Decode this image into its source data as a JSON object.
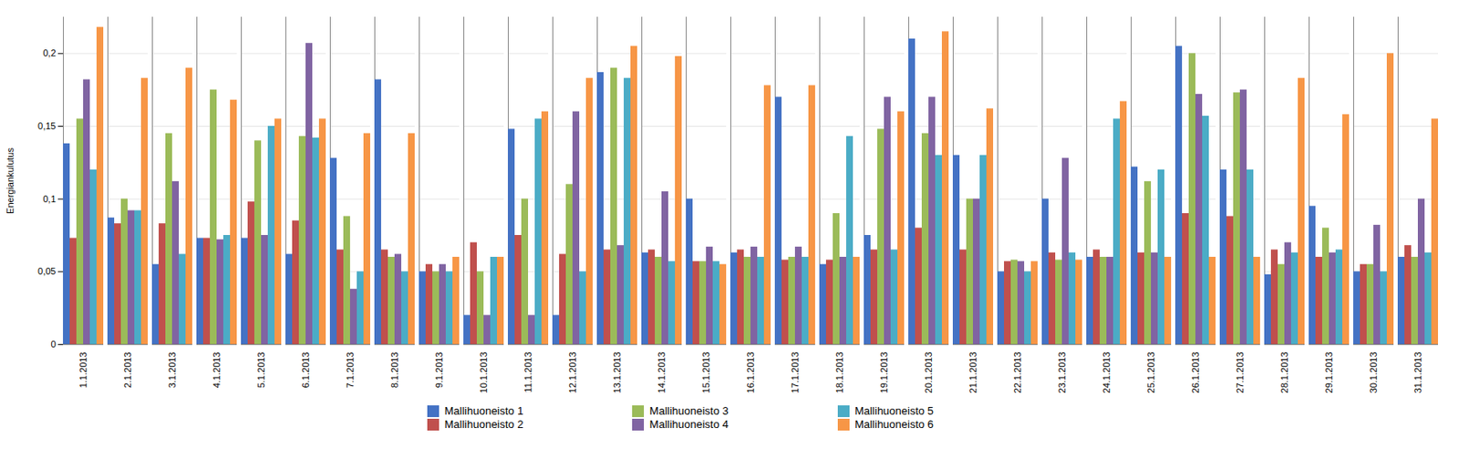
{
  "chart_data": {
    "type": "bar",
    "categories": [
      "1.1.2013",
      "2.1.2013",
      "3.1.2013",
      "4.1.2013",
      "5.1.2013",
      "6.1.2013",
      "7.1.2013",
      "8.1.2013",
      "9.1.2013",
      "10.1.2013",
      "11.1.2013",
      "12.1.2013",
      "13.1.2013",
      "14.1.2013",
      "15.1.2013",
      "16.1.2013",
      "17.1.2013",
      "18.1.2013",
      "19.1.2013",
      "20.1.2013",
      "21.1.2013",
      "22.1.2013",
      "23.1.2013",
      "24.1.2013",
      "25.1.2013",
      "26.1.2013",
      "27.1.2013",
      "28.1.2013",
      "29.1.2013",
      "30.1.2013",
      "31.1.2013"
    ],
    "series": [
      {
        "name": "Mallihuoneisto 1",
        "color": "#4472C4",
        "values": [
          0.138,
          0.087,
          0.055,
          0.073,
          0.073,
          0.062,
          0.128,
          0.182,
          0.05,
          0.02,
          0.148,
          0.02,
          0.187,
          0.063,
          0.1,
          0.063,
          0.17,
          0.055,
          0.075,
          0.21,
          0.13,
          0.05,
          0.1,
          0.06,
          0.122,
          0.205,
          0.12,
          0.048,
          0.095,
          0.05,
          0.06
        ]
      },
      {
        "name": "Mallihuoneisto 2",
        "color": "#C0504D",
        "values": [
          0.073,
          0.083,
          0.083,
          0.073,
          0.098,
          0.085,
          0.065,
          0.065,
          0.055,
          0.07,
          0.075,
          0.062,
          0.065,
          0.065,
          0.057,
          0.065,
          0.058,
          0.058,
          0.065,
          0.08,
          0.065,
          0.057,
          0.063,
          0.065,
          0.063,
          0.09,
          0.088,
          0.065,
          0.06,
          0.055,
          0.068
        ]
      },
      {
        "name": "Mallihuoneisto 3",
        "color": "#9BBB59",
        "values": [
          0.155,
          0.1,
          0.145,
          0.175,
          0.14,
          0.143,
          0.088,
          0.06,
          0.05,
          0.05,
          0.1,
          0.11,
          0.19,
          0.06,
          0.057,
          0.06,
          0.06,
          0.09,
          0.148,
          0.145,
          0.1,
          0.058,
          0.058,
          0.06,
          0.112,
          0.2,
          0.173,
          0.055,
          0.08,
          0.055,
          0.06
        ]
      },
      {
        "name": "Mallihuoneisto 4",
        "color": "#8064A2",
        "values": [
          0.182,
          0.092,
          0.112,
          0.072,
          0.075,
          0.207,
          0.038,
          0.062,
          0.055,
          0.02,
          0.02,
          0.16,
          0.068,
          0.105,
          0.067,
          0.067,
          0.067,
          0.06,
          0.17,
          0.17,
          0.1,
          0.057,
          0.128,
          0.06,
          0.063,
          0.172,
          0.175,
          0.07,
          0.063,
          0.082,
          0.1
        ]
      },
      {
        "name": "Mallihuoneisto 5",
        "color": "#4BACC6",
        "values": [
          0.12,
          0.092,
          0.062,
          0.075,
          0.15,
          0.142,
          0.05,
          0.05,
          0.05,
          0.06,
          0.155,
          0.05,
          0.183,
          0.057,
          0.057,
          0.06,
          0.06,
          0.143,
          0.065,
          0.13,
          0.13,
          0.05,
          0.063,
          0.155,
          0.12,
          0.157,
          0.12,
          0.063,
          0.065,
          0.05,
          0.063
        ]
      },
      {
        "name": "Mallihuoneisto 6",
        "color": "#F79646",
        "values": [
          0.218,
          0.183,
          0.19,
          0.168,
          0.155,
          0.155,
          0.145,
          0.145,
          0.06,
          0.06,
          0.16,
          0.183,
          0.205,
          0.198,
          0.055,
          0.178,
          0.178,
          0.06,
          0.16,
          0.215,
          0.162,
          0.057,
          0.058,
          0.167,
          0.06,
          0.06,
          0.06,
          0.183,
          0.158,
          0.2,
          0.155
        ]
      }
    ],
    "ylabel": "Energiankulutus",
    "ylim": [
      0,
      0.225
    ],
    "yticks": [
      0,
      {
        "value": 0.05,
        "label": "0,05"
      },
      {
        "value": 0.1,
        "label": "0,1"
      },
      {
        "value": 0.15,
        "label": "0,15"
      },
      {
        "value": 0.2,
        "label": "0,2"
      }
    ],
    "grid": true,
    "legend": "bottom"
  }
}
